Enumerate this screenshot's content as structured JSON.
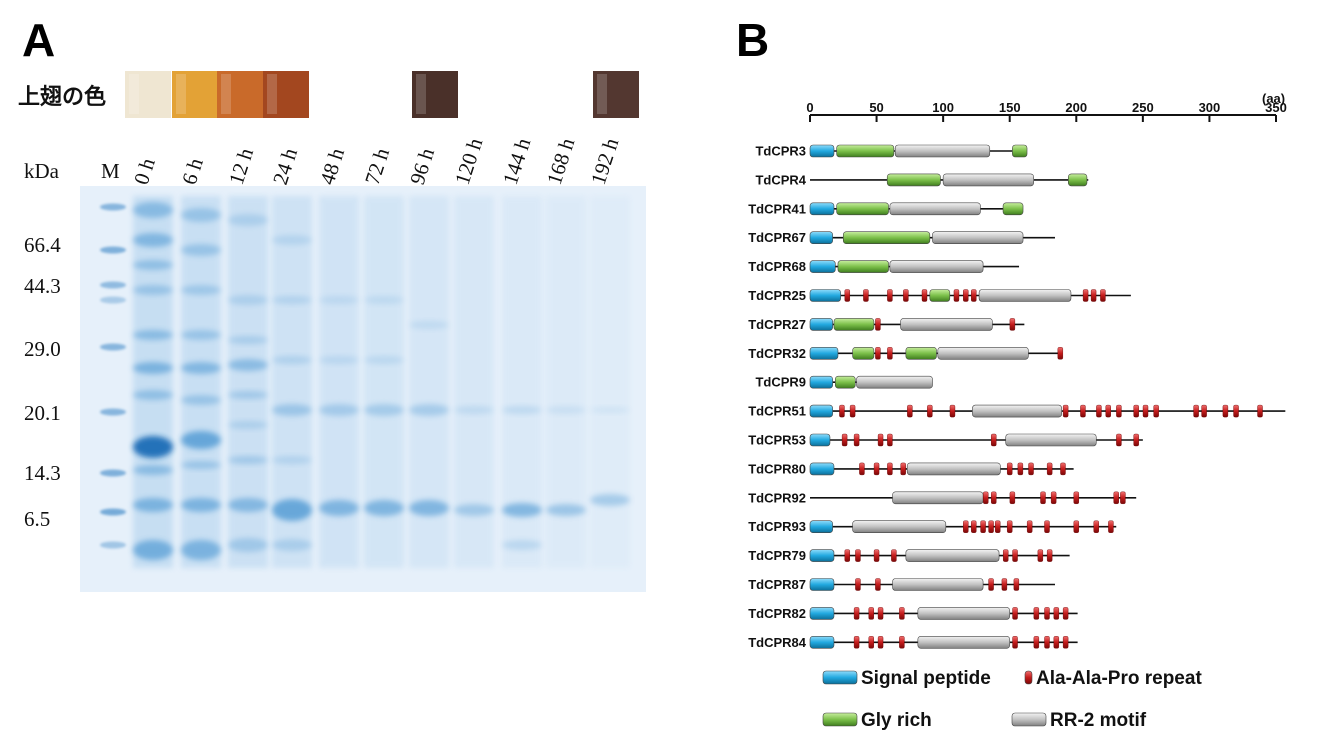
{
  "panel_a": {
    "label": "A",
    "wing_color_label": "上翅の色",
    "wing_swatches": [
      {
        "lane": "0 h",
        "color": "#efe6d2"
      },
      {
        "lane": "6 h",
        "color": "#e3a236"
      },
      {
        "lane": "12 h",
        "color": "#c96a2a"
      },
      {
        "lane": "24 h",
        "color": "#a3471f"
      },
      {
        "lane": "96 h",
        "color": "#4a3029"
      },
      {
        "lane": "192 h",
        "color": "#533730"
      }
    ],
    "kda_label": "kDa",
    "marker_lane": "M",
    "lanes": [
      "0 h",
      "6 h",
      "12 h",
      "24 h",
      "48 h",
      "72 h",
      "96 h",
      "120 h",
      "144 h",
      "168 h",
      "192 h"
    ],
    "mw_markers": [
      "66.4",
      "44.3",
      "29.0",
      "20.1",
      "14.3",
      "6.5"
    ]
  },
  "panel_b": {
    "label": "B",
    "axis_unit": "(aa)",
    "axis_ticks": [
      0,
      50,
      100,
      150,
      200,
      250,
      300,
      350
    ],
    "proteins": [
      {
        "name": "TdCPR3",
        "length": 162,
        "signal": [
          0,
          18
        ],
        "gly": [
          [
            20,
            63
          ],
          [
            152,
            163
          ]
        ],
        "rr2": [
          [
            64,
            135
          ]
        ],
        "aap": []
      },
      {
        "name": "TdCPR4",
        "length": 209,
        "signal": null,
        "gly": [
          [
            58,
            98
          ],
          [
            194,
            208
          ]
        ],
        "rr2": [
          [
            100,
            168
          ]
        ],
        "aap": []
      },
      {
        "name": "TdCPR41",
        "length": 160,
        "signal": [
          0,
          18
        ],
        "gly": [
          [
            20,
            59
          ],
          [
            145,
            160
          ]
        ],
        "rr2": [
          [
            60,
            128
          ]
        ],
        "aap": []
      },
      {
        "name": "TdCPR67",
        "length": 184,
        "signal": [
          0,
          17
        ],
        "gly": [
          [
            25,
            90
          ]
        ],
        "rr2": [
          [
            92,
            160
          ]
        ],
        "aap": []
      },
      {
        "name": "TdCPR68",
        "length": 157,
        "signal": [
          0,
          19
        ],
        "gly": [
          [
            21,
            59
          ]
        ],
        "rr2": [
          [
            60,
            130
          ]
        ],
        "aap": []
      },
      {
        "name": "TdCPR25",
        "length": 241,
        "signal": [
          0,
          23
        ],
        "gly": [
          [
            90,
            105
          ]
        ],
        "rr2": [
          [
            127,
            196
          ]
        ],
        "aap": [
          28,
          42,
          60,
          72,
          86,
          110,
          117,
          123,
          207,
          213,
          220
        ]
      },
      {
        "name": "TdCPR27",
        "length": 161,
        "signal": [
          0,
          17
        ],
        "gly": [
          [
            18,
            48
          ]
        ],
        "rr2": [
          [
            68,
            137
          ]
        ],
        "aap": [
          51,
          152
        ]
      },
      {
        "name": "TdCPR32",
        "length": 188,
        "signal": [
          0,
          21
        ],
        "gly": [
          [
            32,
            48
          ],
          [
            72,
            95
          ]
        ],
        "rr2": [
          [
            96,
            164
          ]
        ],
        "aap": [
          51,
          60,
          188
        ]
      },
      {
        "name": "TdCPR9",
        "length": 92,
        "signal": [
          0,
          17
        ],
        "gly": [
          [
            19,
            34
          ]
        ],
        "rr2": [
          [
            35,
            92
          ]
        ],
        "aap": []
      },
      {
        "name": "TdCPR51",
        "length": 357,
        "signal": [
          0,
          17
        ],
        "gly": [],
        "rr2": [
          [
            122,
            189
          ]
        ],
        "aap": [
          24,
          32,
          75,
          90,
          107,
          192,
          205,
          217,
          224,
          232,
          245,
          252,
          260,
          290,
          296,
          312,
          320,
          338
        ]
      },
      {
        "name": "TdCPR53",
        "length": 250,
        "signal": [
          0,
          15
        ],
        "gly": [],
        "rr2": [
          [
            147,
            215
          ]
        ],
        "aap": [
          26,
          35,
          53,
          60,
          138,
          232,
          245
        ]
      },
      {
        "name": "TdCPR80",
        "length": 198,
        "signal": [
          0,
          18
        ],
        "gly": [],
        "rr2": [
          [
            73,
            143
          ]
        ],
        "aap": [
          39,
          50,
          60,
          70,
          150,
          158,
          166,
          180,
          190
        ]
      },
      {
        "name": "TdCPR92",
        "length": 245,
        "signal": null,
        "gly": [],
        "rr2": [
          [
            62,
            130
          ]
        ],
        "aap": [
          132,
          138,
          152,
          175,
          183,
          200,
          230,
          235
        ]
      },
      {
        "name": "TdCPR93",
        "length": 230,
        "signal": [
          0,
          17
        ],
        "gly": [],
        "rr2": [
          [
            32,
            102
          ]
        ],
        "aap": [
          117,
          123,
          130,
          136,
          141,
          150,
          165,
          178,
          200,
          215,
          226
        ]
      },
      {
        "name": "TdCPR79",
        "length": 195,
        "signal": [
          0,
          18
        ],
        "gly": [],
        "rr2": [
          [
            72,
            142
          ]
        ],
        "aap": [
          28,
          36,
          50,
          63,
          147,
          154,
          173,
          180
        ]
      },
      {
        "name": "TdCPR87",
        "length": 184,
        "signal": [
          0,
          18
        ],
        "gly": [],
        "rr2": [
          [
            62,
            130
          ]
        ],
        "aap": [
          36,
          51,
          136,
          146,
          155
        ]
      },
      {
        "name": "TdCPR82",
        "length": 201,
        "signal": [
          0,
          18
        ],
        "gly": [],
        "rr2": [
          [
            81,
            150
          ]
        ],
        "aap": [
          35,
          46,
          53,
          69,
          154,
          170,
          178,
          185,
          192
        ]
      },
      {
        "name": "TdCPR84",
        "length": 201,
        "signal": [
          0,
          18
        ],
        "gly": [],
        "rr2": [
          [
            81,
            150
          ]
        ],
        "aap": [
          35,
          46,
          53,
          69,
          154,
          170,
          178,
          185,
          192
        ]
      }
    ],
    "legend": {
      "signal": "Signal peptide",
      "aap": "Ala-Ala-Pro repeat",
      "gly": "Gly rich",
      "rr2": "RR-2 motif"
    },
    "colors": {
      "signal": "#22a9e0",
      "gly": "#7cc04a",
      "rr2": "#c2c2c2",
      "aap": "#c41b1b",
      "line": "#111111"
    }
  }
}
